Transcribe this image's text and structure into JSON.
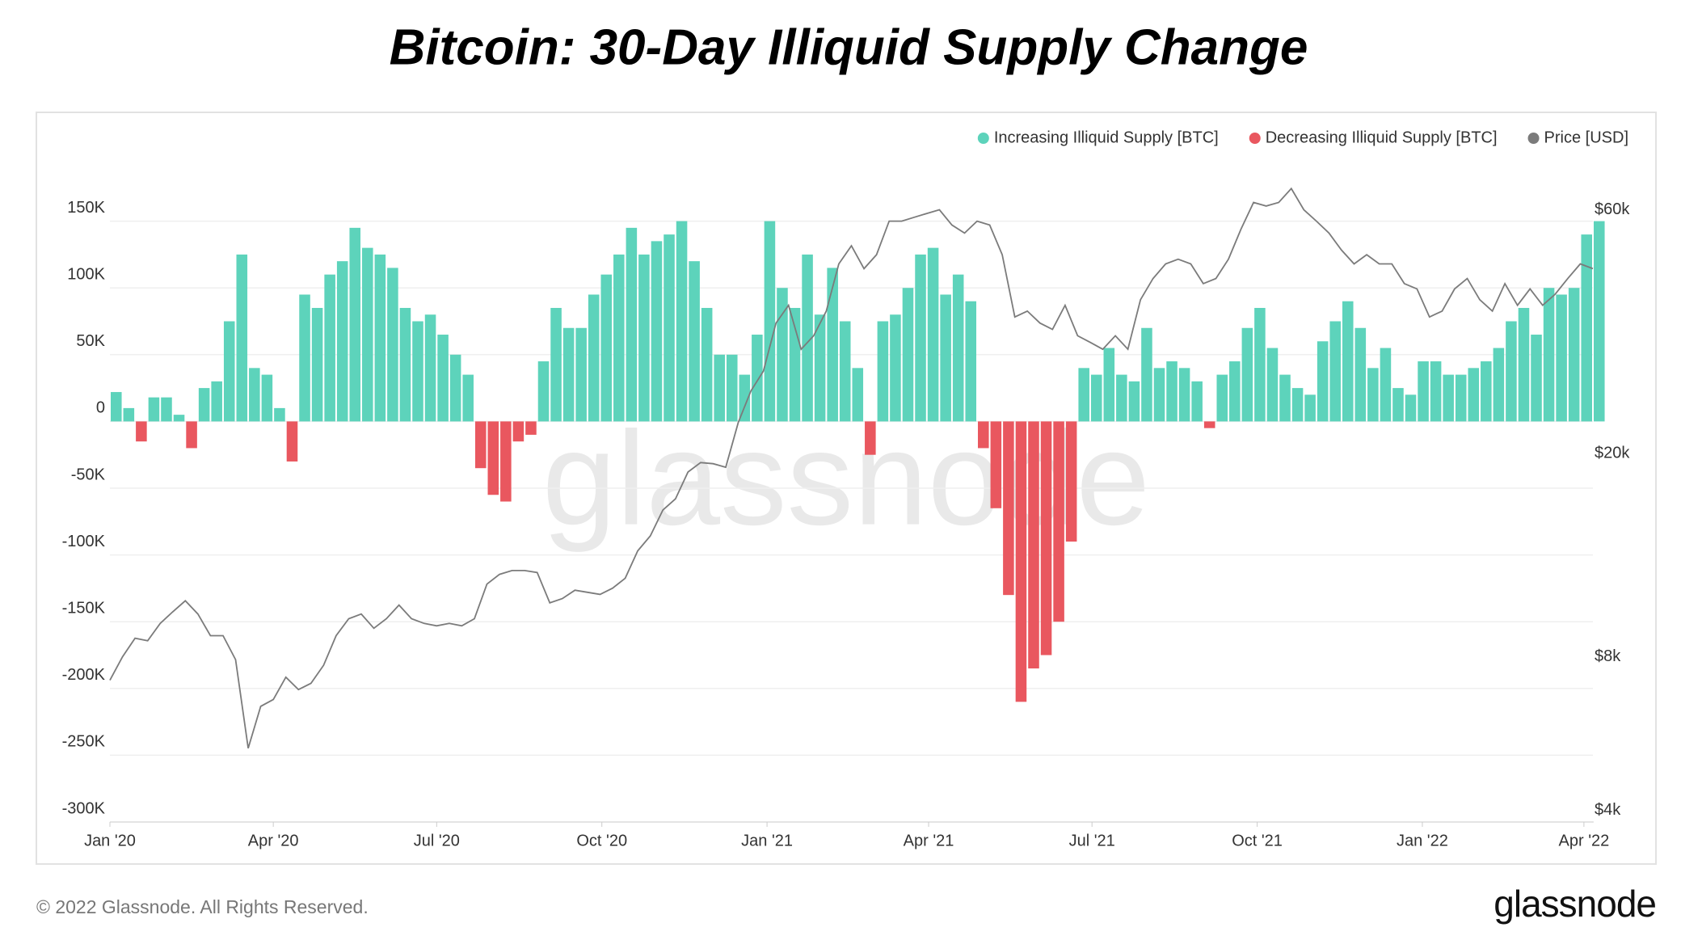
{
  "header": {
    "title": "Bitcoin: 30-Day Illiquid Supply Change"
  },
  "watermark": "glassnode",
  "footer": {
    "copyright": "© 2022 Glassnode. All Rights Reserved.",
    "logo": "glassnode"
  },
  "chart_data": {
    "type": "bar",
    "legend": "top-right",
    "grid": true,
    "x": [
      0,
      7,
      14,
      21,
      28,
      35,
      42,
      49,
      56,
      63,
      70,
      77,
      84,
      91,
      98,
      105,
      112,
      119,
      126,
      133,
      140,
      147,
      154,
      161,
      168,
      175,
      182,
      189,
      196,
      203,
      210,
      217,
      224,
      231,
      238,
      245,
      252,
      259,
      266,
      273,
      280,
      287,
      294,
      301,
      308,
      315,
      322,
      329,
      336,
      343,
      350,
      357,
      364,
      371,
      378,
      385,
      392,
      399,
      406,
      413,
      420,
      427,
      434,
      441,
      448,
      455,
      462,
      469,
      476,
      483,
      490,
      497,
      504,
      511,
      518,
      525,
      532,
      539,
      546,
      553,
      560,
      567,
      574,
      581,
      588,
      595,
      602,
      609,
      616,
      623,
      630,
      637,
      644,
      651,
      658,
      665,
      672,
      679,
      686,
      693,
      700,
      707,
      714,
      721,
      728,
      735,
      742,
      749,
      756,
      763,
      770,
      777,
      784,
      791,
      798,
      805,
      812,
      819,
      826
    ],
    "xlim": [
      0,
      826
    ],
    "xticks": [
      {
        "value": 0,
        "label": "Jan '20"
      },
      {
        "value": 91,
        "label": "Apr '20"
      },
      {
        "value": 182,
        "label": "Jul '20"
      },
      {
        "value": 274,
        "label": "Oct '20"
      },
      {
        "value": 366,
        "label": "Jan '21"
      },
      {
        "value": 456,
        "label": "Apr '21"
      },
      {
        "value": 547,
        "label": "Jul '21"
      },
      {
        "value": 639,
        "label": "Oct '21"
      },
      {
        "value": 731,
        "label": "Jan '22"
      },
      {
        "value": 821,
        "label": "Apr '22"
      }
    ],
    "ylim": [
      -300000,
      200000
    ],
    "yticks": [
      {
        "value": -300000,
        "label": "-300K"
      },
      {
        "value": -250000,
        "label": "-250K"
      },
      {
        "value": -200000,
        "label": "-200K"
      },
      {
        "value": -150000,
        "label": "-150K"
      },
      {
        "value": -100000,
        "label": "-100K"
      },
      {
        "value": -50000,
        "label": "-50K"
      },
      0,
      {
        "value": 50000,
        "label": "50K"
      },
      {
        "value": 100000,
        "label": "100K"
      },
      {
        "value": 150000,
        "label": "150K"
      }
    ],
    "y2log": true,
    "y2lim": [
      3800,
      77000
    ],
    "y2ticks": [
      {
        "value": 4000,
        "label": "$4k"
      },
      {
        "value": 8000,
        "label": "$8k"
      },
      {
        "value": 20000,
        "label": "$20k"
      },
      {
        "value": 60000,
        "label": "$60k"
      }
    ],
    "series": [
      {
        "name": "Increasing Illiquid Supply [BTC]",
        "color": "#5dd3bb",
        "type": "bar",
        "values": [
          22000,
          10000,
          null,
          18000,
          18000,
          5000,
          null,
          25000,
          30000,
          75000,
          125000,
          40000,
          35000,
          10000,
          null,
          95000,
          85000,
          110000,
          120000,
          145000,
          130000,
          125000,
          115000,
          85000,
          75000,
          80000,
          65000,
          50000,
          35000,
          null,
          null,
          null,
          null,
          null,
          45000,
          85000,
          70000,
          70000,
          95000,
          110000,
          125000,
          145000,
          125000,
          135000,
          140000,
          150000,
          120000,
          85000,
          50000,
          50000,
          35000,
          65000,
          150000,
          100000,
          85000,
          125000,
          80000,
          115000,
          75000,
          40000,
          null,
          75000,
          80000,
          100000,
          125000,
          130000,
          95000,
          110000,
          90000,
          null,
          null,
          null,
          null,
          null,
          null,
          null,
          null,
          40000,
          35000,
          55000,
          35000,
          30000,
          70000,
          40000,
          45000,
          40000,
          30000,
          null,
          35000,
          45000,
          70000,
          85000,
          55000,
          35000,
          25000,
          20000,
          60000,
          75000,
          90000,
          70000,
          40000,
          55000,
          25000,
          20000,
          45000,
          45000,
          35000,
          35000,
          40000,
          45000,
          55000,
          75000,
          85000,
          65000,
          100000,
          95000,
          100000,
          140000,
          150000
        ]
      },
      {
        "name": "Decreasing Illiquid Supply [BTC]",
        "color": "#e9575f",
        "type": "bar",
        "values": [
          null,
          null,
          -15000,
          null,
          null,
          null,
          -20000,
          null,
          null,
          null,
          null,
          null,
          null,
          null,
          -30000,
          null,
          null,
          null,
          null,
          null,
          null,
          null,
          null,
          null,
          null,
          null,
          null,
          null,
          null,
          -35000,
          -55000,
          -60000,
          -15000,
          -10000,
          null,
          null,
          null,
          null,
          null,
          null,
          null,
          null,
          null,
          null,
          null,
          null,
          null,
          null,
          null,
          null,
          null,
          null,
          null,
          null,
          null,
          null,
          null,
          null,
          null,
          null,
          -25000,
          null,
          null,
          null,
          null,
          null,
          null,
          null,
          null,
          -20000,
          -65000,
          -130000,
          -210000,
          -185000,
          -175000,
          -150000,
          -90000,
          null,
          null,
          null,
          null,
          null,
          null,
          null,
          null,
          null,
          null,
          -5000,
          null,
          null,
          null,
          null,
          null,
          null,
          null,
          null,
          null,
          null,
          null,
          null,
          null,
          null,
          null,
          null,
          null,
          null,
          null,
          null,
          null,
          null,
          null,
          null,
          null,
          null,
          null,
          null,
          null,
          null,
          null
        ]
      },
      {
        "name": "Price [USD]",
        "color": "#7b7b7b",
        "type": "line",
        "axis": "y2",
        "values": [
          7200,
          8000,
          8700,
          8600,
          9300,
          9800,
          10300,
          9700,
          8800,
          8800,
          7900,
          5300,
          6400,
          6600,
          7300,
          6900,
          7100,
          7700,
          8800,
          9500,
          9700,
          9100,
          9500,
          10100,
          9500,
          9300,
          9200,
          9300,
          9200,
          9500,
          11100,
          11600,
          11800,
          11800,
          11700,
          10200,
          10400,
          10800,
          10700,
          10600,
          10900,
          11400,
          12900,
          13800,
          15500,
          16300,
          18400,
          19200,
          19100,
          18800,
          23000,
          26500,
          29000,
          36000,
          39000,
          32000,
          34000,
          38000,
          47000,
          51000,
          46000,
          49000,
          57000,
          57000,
          58000,
          59000,
          60000,
          56000,
          54000,
          57000,
          56000,
          49000,
          37000,
          38000,
          36000,
          35000,
          39000,
          34000,
          33000,
          32000,
          34000,
          32000,
          40000,
          44000,
          47000,
          48000,
          47000,
          43000,
          44000,
          48000,
          55000,
          62000,
          61000,
          62000,
          66000,
          60000,
          57000,
          54000,
          50000,
          47000,
          49000,
          47000,
          47000,
          43000,
          42000,
          37000,
          38000,
          42000,
          44000,
          40000,
          38000,
          43000,
          39000,
          42000,
          39000,
          41000,
          44000,
          47000,
          46000
        ]
      }
    ]
  }
}
